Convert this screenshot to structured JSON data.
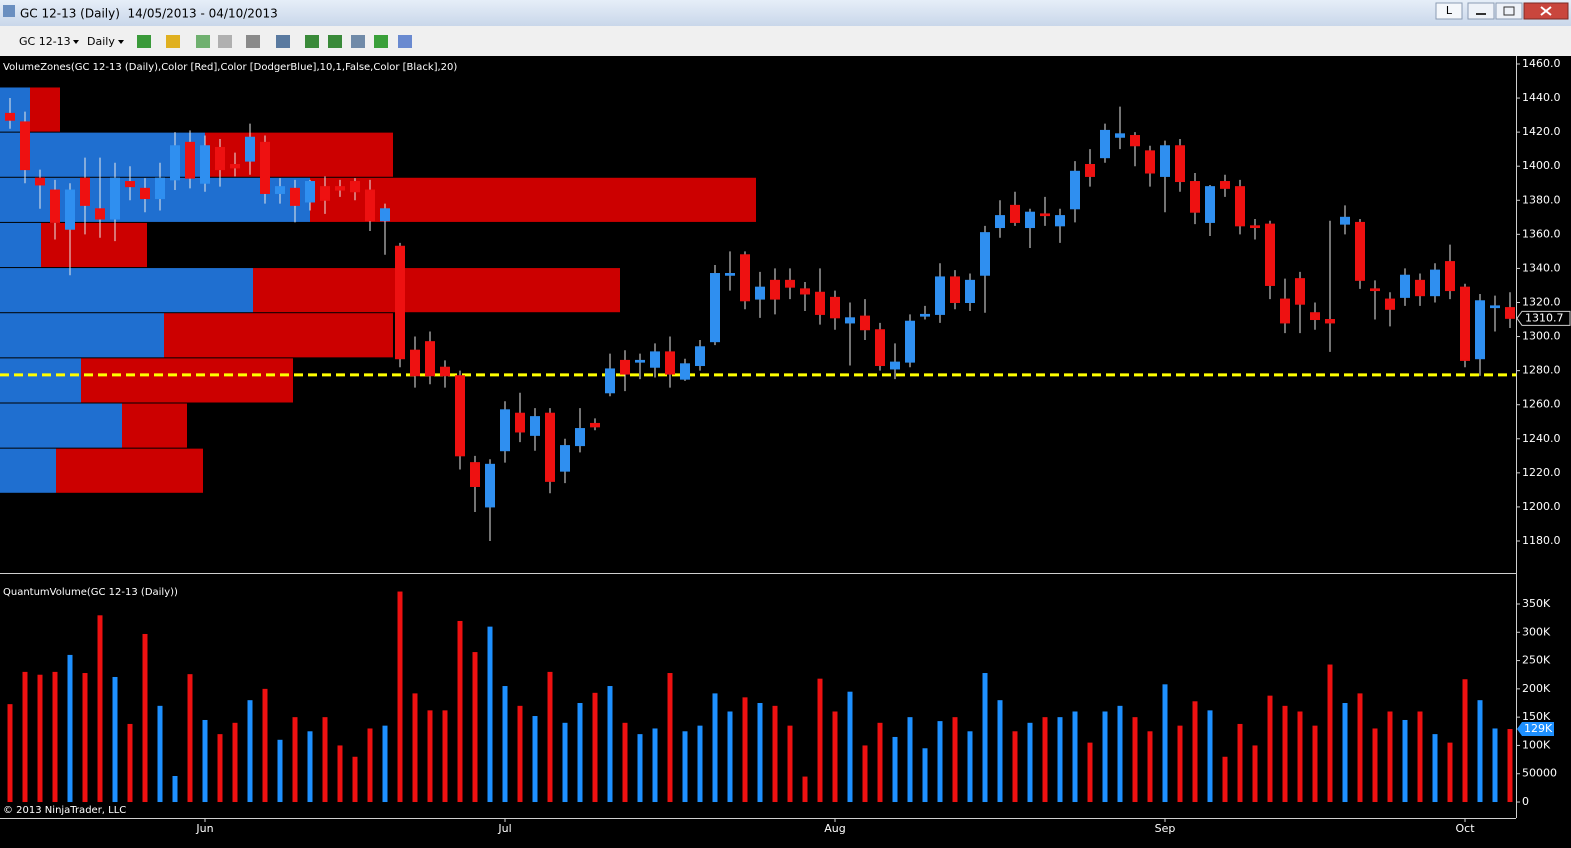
{
  "window": {
    "title": "GC 12-13 (Daily)  14/05/2013 - 04/10/2013",
    "button": "L"
  },
  "toolbar": {
    "instrument": "GC 12-13",
    "period": "Daily"
  },
  "copyright": "© 2013 NinjaTrader, LLC",
  "chart_data": [
    {
      "type": "candlestick",
      "title": "VolumeZones(GC 12-13 (Daily),Color [Red],Color [DodgerBlue],10,1,False,Color [Black],20)",
      "up_color": "#2f8ff0",
      "down_color": "#ee1111",
      "wick_color": "#e8e8e8",
      "categories": [
        null,
        null,
        null,
        null,
        null,
        null,
        null,
        null,
        null,
        null,
        null,
        null,
        null,
        "Jun",
        null,
        null,
        null,
        null,
        null,
        null,
        null,
        null,
        null,
        null,
        null,
        null,
        null,
        null,
        null,
        null,
        null,
        null,
        null,
        "Jul",
        null,
        null,
        null,
        null,
        null,
        null,
        null,
        null,
        null,
        null,
        null,
        null,
        null,
        null,
        null,
        null,
        null,
        null,
        null,
        null,
        null,
        "Aug",
        null,
        null,
        null,
        null,
        null,
        null,
        null,
        null,
        null,
        null,
        null,
        null,
        null,
        null,
        null,
        null,
        null,
        null,
        null,
        null,
        null,
        "Sep",
        null,
        null,
        null,
        null,
        null,
        null,
        null,
        null,
        null,
        null,
        null,
        null,
        null,
        null,
        null,
        null,
        null,
        null,
        null,
        "Oct",
        null,
        null,
        null
      ],
      "open": [
        1431,
        1426,
        1393,
        1386,
        1363,
        1393,
        1375,
        1369,
        1391,
        1387,
        1381,
        1392,
        1414,
        1390,
        1411,
        1401,
        1403,
        1414,
        1384,
        1387,
        1379,
        1388,
        1388,
        1391,
        1386,
        1368,
        1353,
        1292,
        1297,
        1282,
        1277,
        1226,
        1200,
        1233,
        1255,
        1242,
        1255,
        1221,
        1236,
        1249,
        1267,
        1286,
        1285,
        1282,
        1291,
        1275,
        1283,
        1297,
        1336,
        1348,
        1322,
        1333,
        1333,
        1328,
        1326,
        1323,
        1308,
        1312,
        1304,
        1281,
        1285,
        1312,
        1313,
        1335,
        1320,
        1336,
        1364,
        1377,
        1364,
        1372,
        1365,
        1375,
        1401,
        1405,
        1417,
        1418,
        1409,
        1394,
        1412,
        1391,
        1367,
        1391,
        1388,
        1365,
        1366,
        1322,
        1334,
        1314,
        1310,
        1366,
        1367,
        1328,
        1322,
        1323,
        1333,
        1324,
        1344,
        1329,
        1287,
        1317,
        1317
      ],
      "high": [
        1440,
        1432,
        1398,
        1392,
        1390,
        1405,
        1405,
        1402,
        1400,
        1393,
        1402,
        1420,
        1421,
        1418,
        1416,
        1408,
        1425,
        1418,
        1393,
        1392,
        1392,
        1394,
        1392,
        1393,
        1392,
        1378,
        1355,
        1300,
        1303,
        1286,
        1280,
        1230,
        1228,
        1262,
        1267,
        1258,
        1258,
        1240,
        1258,
        1252,
        1290,
        1292,
        1290,
        1296,
        1300,
        1287,
        1298,
        1342,
        1350,
        1350,
        1338,
        1340,
        1340,
        1332,
        1340,
        1327,
        1320,
        1322,
        1308,
        1296,
        1313,
        1318,
        1343,
        1339,
        1337,
        1365,
        1380,
        1385,
        1375,
        1382,
        1375,
        1403,
        1410,
        1425,
        1435,
        1420,
        1412,
        1415,
        1416,
        1396,
        1389,
        1395,
        1392,
        1369,
        1368,
        1334,
        1338,
        1320,
        1368,
        1377,
        1369,
        1333,
        1326,
        1340,
        1337,
        1343,
        1354,
        1331,
        1325,
        1324,
        1326
      ],
      "low": [
        1422,
        1390,
        1375,
        1357,
        1336,
        1360,
        1358,
        1356,
        1380,
        1373,
        1374,
        1386,
        1387,
        1385,
        1388,
        1394,
        1395,
        1378,
        1378,
        1367,
        1374,
        1372,
        1382,
        1380,
        1362,
        1348,
        1282,
        1270,
        1272,
        1270,
        1222,
        1197,
        1180,
        1226,
        1238,
        1233,
        1208,
        1214,
        1232,
        1245,
        1265,
        1268,
        1275,
        1276,
        1270,
        1274,
        1280,
        1295,
        1327,
        1316,
        1311,
        1313,
        1322,
        1315,
        1307,
        1304,
        1283,
        1298,
        1280,
        1275,
        1282,
        1310,
        1308,
        1316,
        1315,
        1314,
        1358,
        1365,
        1352,
        1365,
        1355,
        1367,
        1388,
        1402,
        1410,
        1400,
        1388,
        1373,
        1385,
        1366,
        1359,
        1382,
        1360,
        1357,
        1322,
        1302,
        1302,
        1304,
        1291,
        1360,
        1328,
        1310,
        1306,
        1318,
        1318,
        1320,
        1322,
        1282,
        1277,
        1303,
        1305
      ],
      "close": [
        1427,
        1398,
        1389,
        1367,
        1386,
        1377,
        1369,
        1393,
        1388,
        1381,
        1393,
        1412,
        1393,
        1412,
        1398,
        1399,
        1417,
        1384,
        1388,
        1377,
        1391,
        1380,
        1386,
        1385,
        1368,
        1375,
        1287,
        1277,
        1277,
        1277,
        1230,
        1212,
        1225,
        1257,
        1244,
        1253,
        1215,
        1236,
        1246,
        1247,
        1281,
        1278,
        1286,
        1291,
        1278,
        1284,
        1294,
        1337,
        1337,
        1321,
        1329,
        1322,
        1329,
        1325,
        1313,
        1311,
        1311,
        1304,
        1283,
        1285,
        1309,
        1313,
        1335,
        1320,
        1333,
        1361,
        1371,
        1367,
        1373,
        1371,
        1371,
        1397,
        1394,
        1421,
        1419,
        1412,
        1396,
        1412,
        1391,
        1373,
        1388,
        1387,
        1365,
        1364,
        1330,
        1308,
        1319,
        1310,
        1308,
        1370,
        1333,
        1327,
        1316,
        1336,
        1324,
        1339,
        1327,
        1286,
        1321,
        1318,
        1310.7
      ],
      "volume_zones": {
        "up_color": "#1f6fd0",
        "down_color": "#cc0000",
        "edges": [
          1446.5,
          1420,
          1393.5,
          1367,
          1340.5,
          1314,
          1287.5,
          1261,
          1234.5,
          1208
        ],
        "up": [
          240000,
          1640000,
          2480000,
          328000,
          2024000,
          1312000,
          648000,
          976000,
          448000
        ],
        "down": [
          240000,
          1504000,
          3568000,
          848000,
          2936000,
          1832000,
          1696000,
          520000,
          1176000
        ]
      },
      "hline": {
        "value": 1277.5,
        "color": "#ffff00"
      },
      "ylim": [
        1161.8,
        1464.1
      ],
      "yticks": [
        {
          "value": 1180,
          "label": "1180.0"
        },
        {
          "value": 1200,
          "label": "1200.0"
        },
        {
          "value": 1220,
          "label": "1220.0"
        },
        {
          "value": 1240,
          "label": "1240.0"
        },
        {
          "value": 1260,
          "label": "1260.0"
        },
        {
          "value": 1280,
          "label": "1280.0"
        },
        {
          "value": 1300,
          "label": "1300.0"
        },
        {
          "value": 1320,
          "label": "1320.0"
        },
        {
          "value": 1340,
          "label": "1340.0"
        },
        {
          "value": 1360,
          "label": "1360.0"
        },
        {
          "value": 1380,
          "label": "1380.0"
        },
        {
          "value": 1400,
          "label": "1400.0"
        },
        {
          "value": 1420,
          "label": "1420.0"
        },
        {
          "value": 1440,
          "label": "1440.0"
        },
        {
          "value": 1460,
          "label": "1460.0"
        }
      ]
    },
    {
      "type": "bar",
      "title": "QuantumVolume(GC 12-13 (Daily))",
      "up_color": "#1e90ff",
      "down_color": "#ee1111",
      "values": [
        173000,
        230000,
        225000,
        230000,
        260000,
        228000,
        330000,
        221000,
        138000,
        297000,
        170000,
        46000,
        226000,
        145000,
        120000,
        140000,
        180000,
        200000,
        110000,
        150000,
        125000,
        150000,
        100000,
        80000,
        130000,
        135000,
        372000,
        192000,
        162000,
        162000,
        320000,
        265000,
        310000,
        205000,
        170000,
        152000,
        230000,
        140000,
        175000,
        193000,
        205000,
        140000,
        120000,
        130000,
        228000,
        125000,
        135000,
        192000,
        160000,
        185000,
        175000,
        170000,
        135000,
        45000,
        218000,
        160000,
        195000,
        100000,
        140000,
        115000,
        150000,
        95000,
        143000,
        150000,
        125000,
        228000,
        180000,
        125000,
        140000,
        150000,
        150000,
        160000,
        105000,
        160000,
        170000,
        150000,
        125000,
        208000,
        135000,
        178000,
        162000,
        80000,
        138000,
        100000,
        188000,
        170000,
        160000,
        135000,
        243000,
        175000,
        192000,
        130000,
        160000,
        145000,
        160000,
        120000,
        105000,
        217000,
        180000,
        130000,
        129000
      ],
      "value_labels": [
        null,
        null,
        null,
        null,
        null,
        null,
        null,
        null,
        null,
        null,
        null,
        null,
        null,
        null,
        null,
        null,
        null,
        null,
        null,
        null,
        null,
        null,
        null,
        null,
        null,
        null,
        null,
        null,
        null,
        null,
        null,
        null,
        null,
        null,
        null,
        null,
        null,
        null,
        null,
        null,
        null,
        null,
        null,
        null,
        null,
        null,
        null,
        null,
        null,
        null,
        null,
        null,
        null,
        null,
        null,
        null,
        null,
        null,
        null,
        null,
        null,
        null,
        null,
        null,
        null,
        null,
        null,
        null,
        null,
        null,
        null,
        null,
        null,
        null,
        null,
        null,
        null,
        null,
        null,
        null,
        null,
        null,
        null,
        null,
        null,
        null,
        null,
        null,
        null,
        null,
        null,
        null,
        null,
        null,
        null,
        null,
        null,
        null,
        null,
        null,
        "129K"
      ],
      "ylim": [
        -24700,
        397700
      ],
      "yticks": [
        0,
        50000,
        {
          "value": 100000,
          "label": "100K"
        },
        {
          "value": 150000,
          "label": "150K"
        },
        {
          "value": 200000,
          "label": "200K"
        },
        {
          "value": 250000,
          "label": "250K"
        },
        {
          "value": 300000,
          "label": "300K"
        },
        {
          "value": 350000,
          "label": "350K"
        }
      ]
    }
  ]
}
